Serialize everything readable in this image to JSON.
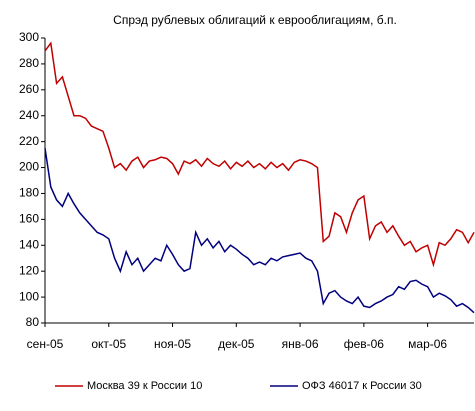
{
  "chart_data": {
    "type": "line",
    "title": "Спрэд рублевых облигаций к еврооблигациям, б.п.",
    "categories": [
      "сен-05",
      null,
      null,
      null,
      null,
      null,
      null,
      null,
      null,
      null,
      null,
      "окт-05",
      null,
      null,
      null,
      null,
      null,
      null,
      null,
      null,
      null,
      null,
      "ноя-05",
      null,
      null,
      null,
      null,
      null,
      null,
      null,
      null,
      null,
      null,
      "дек-05",
      null,
      null,
      null,
      null,
      null,
      null,
      null,
      null,
      null,
      null,
      "янв-06",
      null,
      null,
      null,
      null,
      null,
      null,
      null,
      null,
      null,
      null,
      "фев-06",
      null,
      null,
      null,
      null,
      null,
      null,
      null,
      null,
      null,
      null,
      "мар-06",
      null,
      null,
      null,
      null,
      null,
      null,
      null,
      null
    ],
    "series": [
      {
        "name": "Москва 39 к России 10",
        "color": "#c00000",
        "values": [
          290,
          296,
          265,
          270,
          255,
          240,
          240,
          238,
          232,
          230,
          228,
          215,
          200,
          203,
          198,
          205,
          208,
          200,
          205,
          206,
          208,
          207,
          203,
          195,
          205,
          203,
          206,
          201,
          207,
          203,
          201,
          205,
          199,
          204,
          201,
          205,
          200,
          203,
          199,
          204,
          200,
          203,
          198,
          204,
          206,
          205,
          203,
          200,
          143,
          147,
          165,
          162,
          150,
          165,
          175,
          178,
          145,
          155,
          158,
          150,
          155,
          147,
          140,
          143,
          135,
          138,
          140,
          125,
          142,
          140,
          145,
          152,
          150,
          142,
          150
        ]
      },
      {
        "name": "ОФЗ 46017 к России 30",
        "color": "#000080",
        "values": [
          215,
          185,
          175,
          170,
          180,
          172,
          165,
          160,
          155,
          150,
          148,
          145,
          130,
          120,
          135,
          125,
          130,
          120,
          125,
          130,
          128,
          140,
          133,
          125,
          120,
          122,
          150,
          140,
          145,
          138,
          143,
          135,
          140,
          137,
          133,
          130,
          125,
          127,
          125,
          130,
          128,
          131,
          132,
          133,
          134,
          130,
          128,
          120,
          95,
          103,
          105,
          100,
          97,
          95,
          100,
          93,
          92,
          95,
          97,
          100,
          102,
          108,
          106,
          112,
          113,
          110,
          108,
          100,
          103,
          101,
          98,
          93,
          95,
          92,
          88
        ]
      }
    ],
    "ylim": [
      80,
      300
    ],
    "yticks": [
      80,
      100,
      120,
      140,
      160,
      180,
      200,
      220,
      240,
      260,
      280,
      300
    ],
    "grid": false
  }
}
